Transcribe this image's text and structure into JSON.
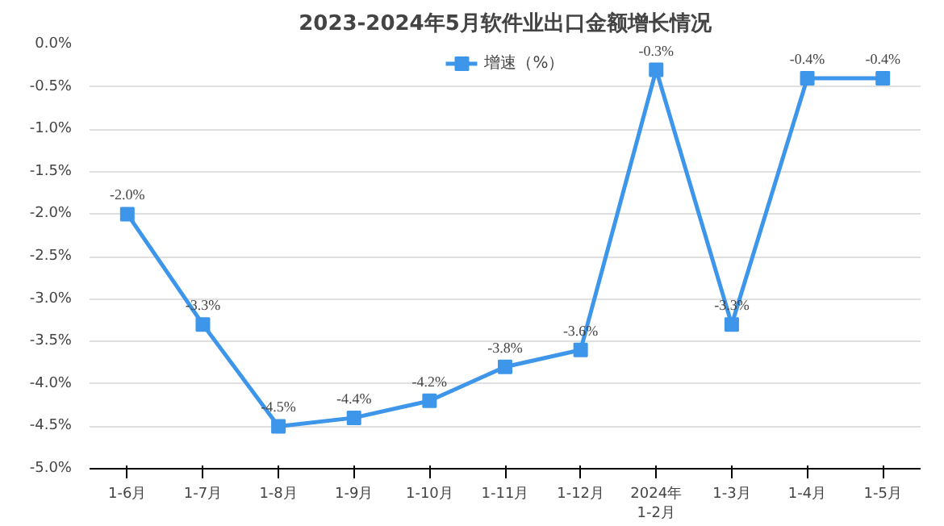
{
  "chart_data": {
    "type": "line",
    "title": "2023-2024年5月软件业出口金额增长情况",
    "categories": [
      "1-6月",
      "1-7月",
      "1-8月",
      "1-9月",
      "1-10月",
      "1-11月",
      "1-12月",
      "2024年\n1-2月",
      "1-3月",
      "1-4月",
      "1-5月"
    ],
    "series": [
      {
        "name": "增速（%）",
        "color": "#3d96ea",
        "values": [
          -2.0,
          -3.3,
          -4.5,
          -4.4,
          -4.2,
          -3.8,
          -3.6,
          -0.3,
          -3.3,
          -0.4,
          -0.4
        ],
        "value_labels": [
          "-2.0%",
          "-3.3%",
          "-4.5%",
          "-4.4%",
          "-4.2%",
          "-3.8%",
          "-3.6%",
          "-0.3%",
          "-3.3%",
          "-0.4%",
          "-0.4%"
        ]
      }
    ],
    "ylim": [
      -5.0,
      0.0
    ],
    "yticks": [
      {
        "value": 0.0,
        "label": "0.0%"
      },
      {
        "value": -0.5,
        "label": "-0.5%"
      },
      {
        "value": -1.0,
        "label": "-1.0%"
      },
      {
        "value": -1.5,
        "label": "-1.5%"
      },
      {
        "value": -2.0,
        "label": "-2.0%"
      },
      {
        "value": -2.5,
        "label": "-2.5%"
      },
      {
        "value": -3.0,
        "label": "-3.0%"
      },
      {
        "value": -3.5,
        "label": "-3.5%"
      },
      {
        "value": -4.0,
        "label": "-4.0%"
      },
      {
        "value": -4.5,
        "label": "-4.5%"
      },
      {
        "value": -5.0,
        "label": "-5.0%"
      }
    ],
    "grid": "y",
    "legend": "top",
    "marker": "square",
    "line_style": "solid"
  }
}
